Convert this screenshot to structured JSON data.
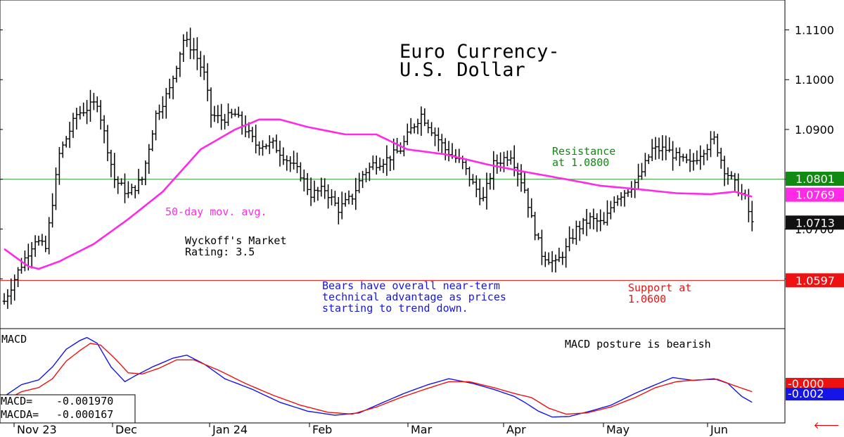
{
  "chart_data": [
    {
      "type": "ohlc",
      "title": "Euro Currency-\nU.S. Dollar",
      "x_labels": [
        "Nov 23",
        "Dec",
        "Jan 24",
        "Feb",
        "Mar",
        "Apr",
        "May",
        "Jun"
      ],
      "y_tick_labels": [
        "1.1100",
        "1.1000",
        "1.0900",
        "1.0800",
        "1.0700",
        "1.0600"
      ],
      "ylim": [
        1.05,
        1.116
      ],
      "price_badges": [
        {
          "label": "1.0801",
          "value": 1.0801,
          "color": "#108a10"
        },
        {
          "label": "1.0769",
          "value": 1.0769,
          "color": "#ff2ae6"
        },
        {
          "label": "1.0713",
          "value": 1.0713,
          "color": "#111111"
        },
        {
          "label": "1.0597",
          "value": 1.0597,
          "color": "#ee1111"
        }
      ],
      "resistance_value": 1.08,
      "support_value": 1.0597,
      "moving_average_label": "50-day mov. avg.",
      "annotations": {
        "resistance": "Resistance\nat 1.0800",
        "support": "Support at\n1.0600",
        "wyckoff": "Wyckoff's Market\nRating: 3.5",
        "commentary": "Bears have overall near-term\ntechnical advantage as prices\nstarting to trend down."
      },
      "price_keypoints": [
        [
          0,
          1.0555
        ],
        [
          4,
          1.0615
        ],
        [
          9,
          1.068
        ],
        [
          12,
          1.066
        ],
        [
          16,
          1.085
        ],
        [
          21,
          1.093
        ],
        [
          27,
          1.0955
        ],
        [
          32,
          1.08
        ],
        [
          36,
          1.077
        ],
        [
          40,
          1.08
        ],
        [
          44,
          1.093
        ],
        [
          48,
          1.098
        ],
        [
          52,
          1.108
        ],
        [
          55,
          1.106
        ],
        [
          58,
          1.101
        ],
        [
          60,
          1.093
        ],
        [
          63,
          1.092
        ],
        [
          67,
          1.093
        ],
        [
          70,
          1.09
        ],
        [
          73,
          1.087
        ],
        [
          78,
          1.087
        ],
        [
          82,
          1.084
        ],
        [
          86,
          1.081
        ],
        [
          89,
          1.077
        ],
        [
          93,
          1.078
        ],
        [
          97,
          1.074
        ],
        [
          101,
          1.0765
        ],
        [
          104,
          1.081
        ],
        [
          107,
          1.083
        ],
        [
          111,
          1.084
        ],
        [
          115,
          1.086
        ],
        [
          118,
          1.09
        ],
        [
          121,
          1.093
        ],
        [
          124,
          1.09
        ],
        [
          128,
          1.086
        ],
        [
          133,
          1.083
        ],
        [
          136,
          1.079
        ],
        [
          139,
          1.076
        ],
        [
          142,
          1.083
        ],
        [
          147,
          1.085
        ],
        [
          151,
          1.078
        ],
        [
          153,
          1.072
        ],
        [
          156,
          1.065
        ],
        [
          160,
          1.063
        ],
        [
          163,
          1.066
        ],
        [
          166,
          1.07
        ],
        [
          170,
          1.072
        ],
        [
          174,
          1.071
        ],
        [
          177,
          1.076
        ],
        [
          181,
          1.078
        ],
        [
          184,
          1.08
        ],
        [
          188,
          1.086
        ],
        [
          192,
          1.086
        ],
        [
          196,
          1.084
        ],
        [
          199,
          1.083
        ],
        [
          203,
          1.086
        ],
        [
          206,
          1.088
        ],
        [
          209,
          1.082
        ],
        [
          212,
          1.079
        ],
        [
          215,
          1.076
        ],
        [
          217,
          1.071
        ]
      ],
      "moving_average_keypoints": [
        [
          0,
          1.066
        ],
        [
          7,
          1.0625
        ],
        [
          10,
          1.062
        ],
        [
          16,
          1.0635
        ],
        [
          26,
          1.067
        ],
        [
          36,
          1.072
        ],
        [
          46,
          1.0775
        ],
        [
          57,
          1.086
        ],
        [
          67,
          1.09
        ],
        [
          74,
          1.092
        ],
        [
          80,
          1.092
        ],
        [
          88,
          1.0905
        ],
        [
          99,
          1.089
        ],
        [
          108,
          1.089
        ],
        [
          117,
          1.086
        ],
        [
          128,
          1.085
        ],
        [
          140,
          1.083
        ],
        [
          151,
          1.0815
        ],
        [
          163,
          1.08
        ],
        [
          173,
          1.0787
        ],
        [
          184,
          1.078
        ],
        [
          195,
          1.0772
        ],
        [
          205,
          1.077
        ],
        [
          212,
          1.0775
        ],
        [
          217,
          1.0765
        ]
      ]
    },
    {
      "type": "line",
      "title": "MACD",
      "posture_note": "MACD posture is bearish",
      "ylim": [
        -0.0055,
        0.0105
      ],
      "readouts": [
        {
          "label": "MACD=",
          "value": "-0.001970"
        },
        {
          "label": "MACDA=",
          "value": "-0.000167"
        }
      ],
      "badges": [
        {
          "label": "-0.000",
          "value": -0.000167,
          "color": "#ee1111"
        },
        {
          "label": "-0.002",
          "value": -0.00197,
          "color": "#1515e6"
        }
      ],
      "series": [
        {
          "key": "macd",
          "color": "#1515e6",
          "keypoints": [
            [
              0,
              -0.001
            ],
            [
              5,
              0.001
            ],
            [
              10,
              0.0018
            ],
            [
              14,
              0.004
            ],
            [
              18,
              0.007
            ],
            [
              22,
              0.0085
            ],
            [
              24,
              0.009
            ],
            [
              27,
              0.008
            ],
            [
              31,
              0.004
            ],
            [
              35,
              0.0015
            ],
            [
              38,
              0.0025
            ],
            [
              43,
              0.004
            ],
            [
              49,
              0.0055
            ],
            [
              53,
              0.006
            ],
            [
              58,
              0.0045
            ],
            [
              64,
              0.002
            ],
            [
              72,
              0.0002
            ],
            [
              80,
              -0.002
            ],
            [
              88,
              -0.0035
            ],
            [
              96,
              -0.0042
            ],
            [
              103,
              -0.0038
            ],
            [
              110,
              -0.002
            ],
            [
              116,
              -0.0005
            ],
            [
              123,
              0.001
            ],
            [
              129,
              0.002
            ],
            [
              136,
              0.0012
            ],
            [
              142,
              0.0002
            ],
            [
              148,
              -0.001
            ],
            [
              151,
              -0.002
            ],
            [
              155,
              -0.0035
            ],
            [
              159,
              -0.0045
            ],
            [
              164,
              -0.0044
            ],
            [
              170,
              -0.0035
            ],
            [
              176,
              -0.0025
            ],
            [
              183,
              -0.0005
            ],
            [
              189,
              0.001
            ],
            [
              194,
              0.0022
            ],
            [
              200,
              0.0017
            ],
            [
              206,
              0.002
            ],
            [
              210,
              0.0012
            ],
            [
              214,
              -0.001
            ],
            [
              217,
              -0.002
            ]
          ]
        },
        {
          "key": "macda",
          "color": "#ee1111",
          "keypoints": [
            [
              0,
              -0.0018
            ],
            [
              5,
              -0.0002
            ],
            [
              10,
              0.0005
            ],
            [
              14,
              0.002
            ],
            [
              18,
              0.005
            ],
            [
              22,
              0.0068
            ],
            [
              25,
              0.008
            ],
            [
              28,
              0.0077
            ],
            [
              32,
              0.0055
            ],
            [
              36,
              0.003
            ],
            [
              40,
              0.0028
            ],
            [
              45,
              0.0038
            ],
            [
              50,
              0.0052
            ],
            [
              55,
              0.0052
            ],
            [
              62,
              0.0035
            ],
            [
              70,
              0.0012
            ],
            [
              78,
              -0.0008
            ],
            [
              86,
              -0.0025
            ],
            [
              94,
              -0.0037
            ],
            [
              101,
              -0.004
            ],
            [
              108,
              -0.0028
            ],
            [
              115,
              -0.0012
            ],
            [
              122,
              0.0002
            ],
            [
              129,
              0.0015
            ],
            [
              135,
              0.0015
            ],
            [
              142,
              0.0005
            ],
            [
              148,
              -0.0005
            ],
            [
              153,
              -0.0012
            ],
            [
              158,
              -0.003
            ],
            [
              163,
              -0.004
            ],
            [
              169,
              -0.0038
            ],
            [
              176,
              -0.0028
            ],
            [
              183,
              -0.0012
            ],
            [
              189,
              0.0005
            ],
            [
              195,
              0.0015
            ],
            [
              201,
              0.0018
            ],
            [
              207,
              0.0019
            ],
            [
              212,
              0.0008
            ],
            [
              217,
              -0.0002
            ]
          ]
        }
      ]
    }
  ]
}
